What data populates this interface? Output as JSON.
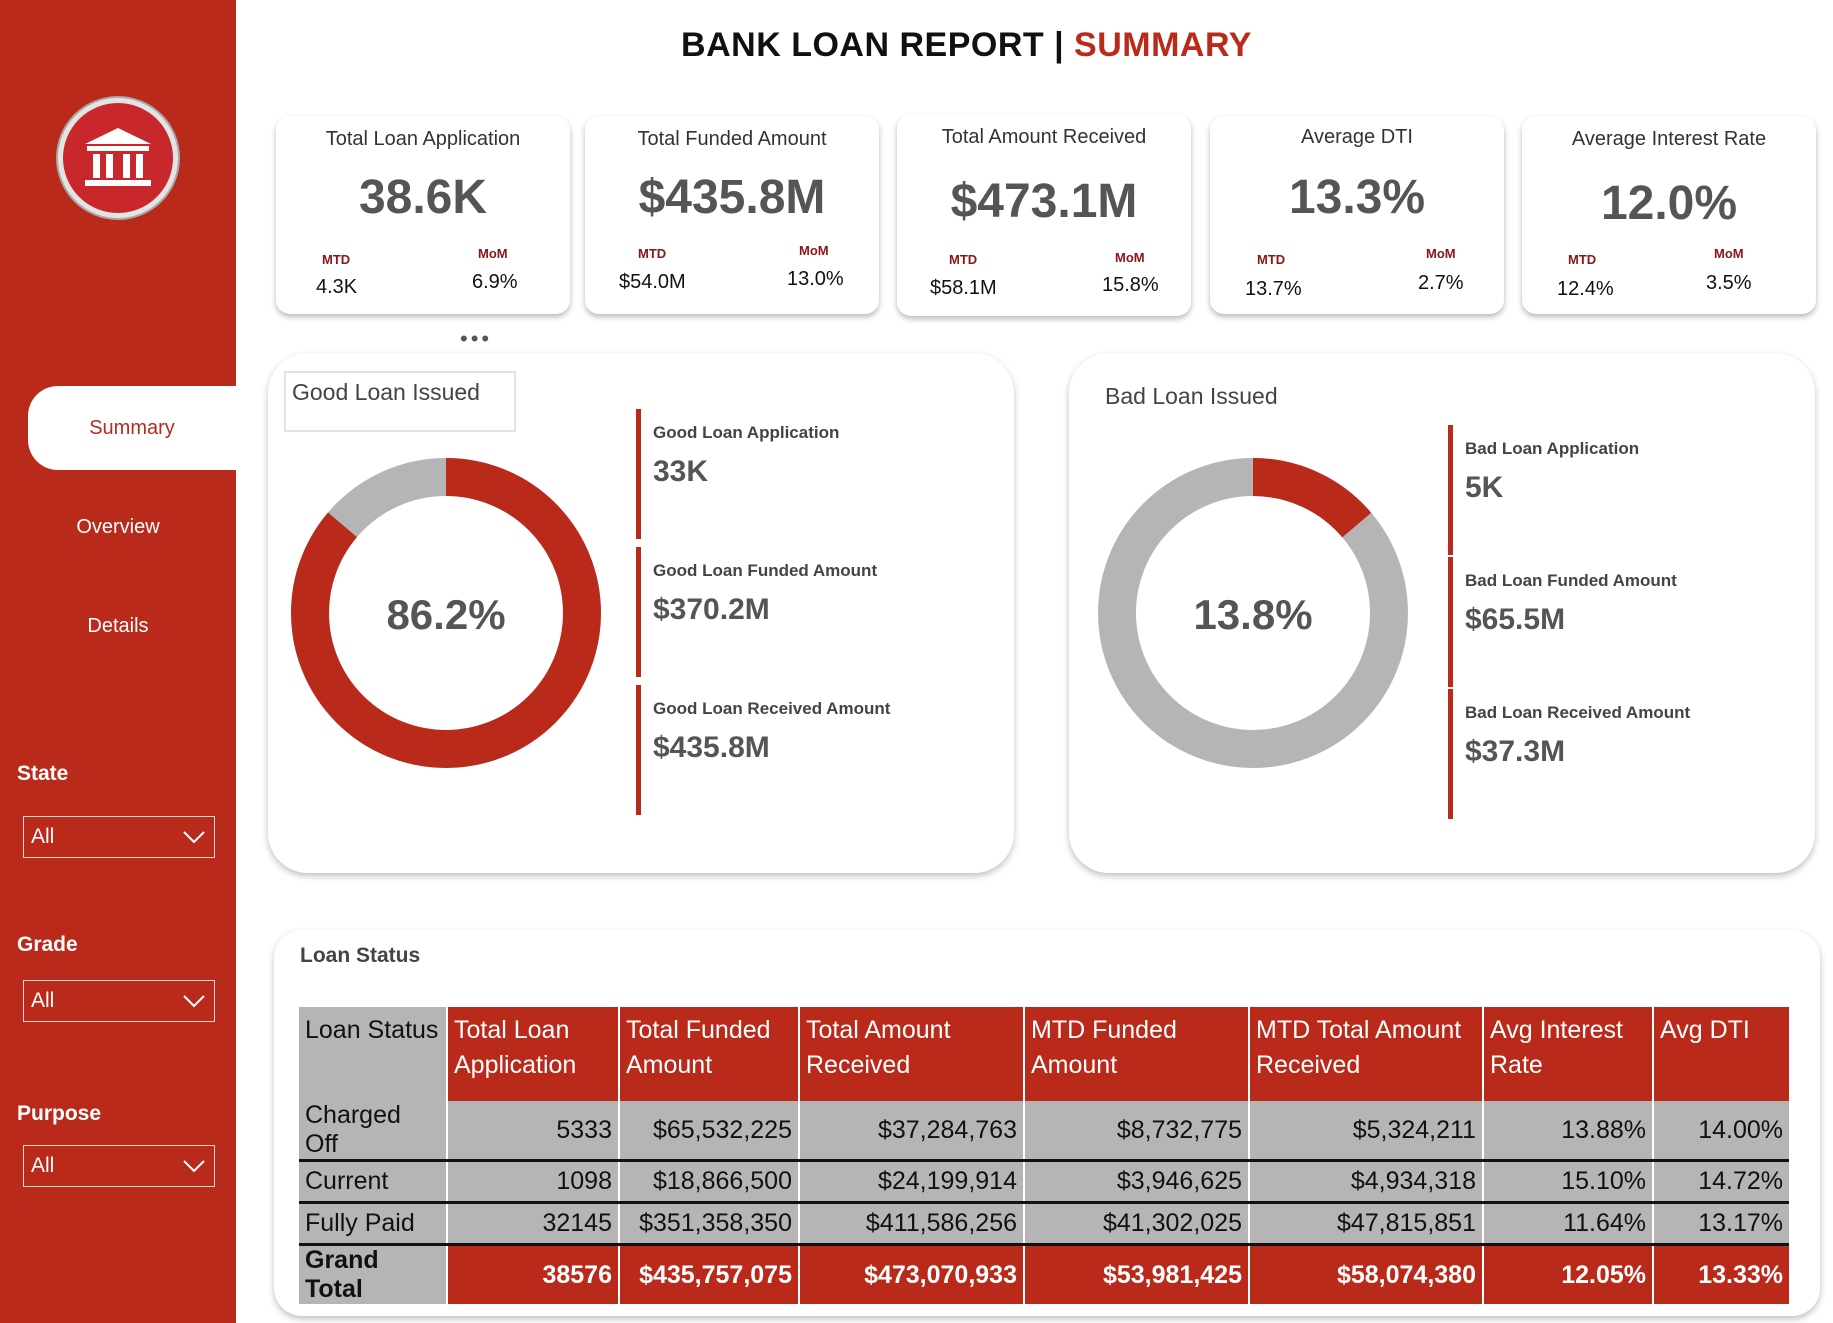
{
  "header": {
    "title_main": "BANK LOAN REPORT | ",
    "title_accent": "SUMMARY"
  },
  "colors": {
    "accent": "#b92a1b",
    "gray": "#b5b5b5"
  },
  "sidebar": {
    "logo_icon": "bank-icon",
    "nav": [
      {
        "label": "Summary",
        "active": true
      },
      {
        "label": "Overview",
        "active": false
      },
      {
        "label": "Details",
        "active": false
      }
    ],
    "filters": [
      {
        "label": "State",
        "value": "All"
      },
      {
        "label": "Grade",
        "value": "All"
      },
      {
        "label": "Purpose",
        "value": "All"
      }
    ]
  },
  "kpis": [
    {
      "title": "Total Loan Application",
      "value": "38.6K",
      "mtd_label": "MTD",
      "mtd": "4.3K",
      "mom_label": "MoM",
      "mom": "6.9%"
    },
    {
      "title": "Total Funded Amount",
      "value": "$435.8M",
      "mtd_label": "MTD",
      "mtd": "$54.0M",
      "mom_label": "MoM",
      "mom": "13.0%"
    },
    {
      "title": "Total Amount Received",
      "value": "$473.1M",
      "mtd_label": "MTD",
      "mtd": "$58.1M",
      "mom_label": "MoM",
      "mom": "15.8%"
    },
    {
      "title": "Average DTI",
      "value": "13.3%",
      "mtd_label": "MTD",
      "mtd": "13.7%",
      "mom_label": "MoM",
      "mom": "2.7%"
    },
    {
      "title": "Average Interest Rate",
      "value": "12.0%",
      "mtd_label": "MTD",
      "mtd": "12.4%",
      "mom_label": "MoM",
      "mom": "3.5%"
    }
  ],
  "good_loan": {
    "title": "Good Loan Issued",
    "percent_label": "86.2%",
    "percent": 0.862,
    "metrics": [
      {
        "label": "Good Loan Application",
        "value": "33K"
      },
      {
        "label": "Good Loan Funded Amount",
        "value": "$370.2M"
      },
      {
        "label": "Good Loan Received Amount",
        "value": "$435.8M"
      }
    ]
  },
  "bad_loan": {
    "title": "Bad Loan Issued",
    "percent_label": "13.8%",
    "percent": 0.138,
    "metrics": [
      {
        "label": "Bad Loan Application",
        "value": "5K"
      },
      {
        "label": "Bad Loan Funded Amount",
        "value": "$65.5M"
      },
      {
        "label": "Bad Loan Received Amount",
        "value": "$37.3M"
      }
    ]
  },
  "loan_status": {
    "title": "Loan Status",
    "columns": [
      "Loan Status",
      "Total Loan Application",
      "Total Funded Amount",
      "Total Amount Received",
      "MTD Funded Amount",
      "MTD Total Amount Received",
      "Avg Interest Rate",
      "Avg DTI"
    ],
    "rows": [
      [
        "Charged Off",
        "5333",
        "$65,532,225",
        "$37,284,763",
        "$8,732,775",
        "$5,324,211",
        "13.88%",
        "14.00%"
      ],
      [
        "Current",
        "1098",
        "$18,866,500",
        "$24,199,914",
        "$3,946,625",
        "$4,934,318",
        "15.10%",
        "14.72%"
      ],
      [
        "Fully Paid",
        "32145",
        "$351,358,350",
        "$411,586,256",
        "$41,302,025",
        "$47,815,851",
        "11.64%",
        "13.17%"
      ]
    ],
    "total": [
      "Grand Total",
      "38576",
      "$435,757,075",
      "$473,070,933",
      "$53,981,425",
      "$58,074,380",
      "12.05%",
      "13.33%"
    ]
  }
}
